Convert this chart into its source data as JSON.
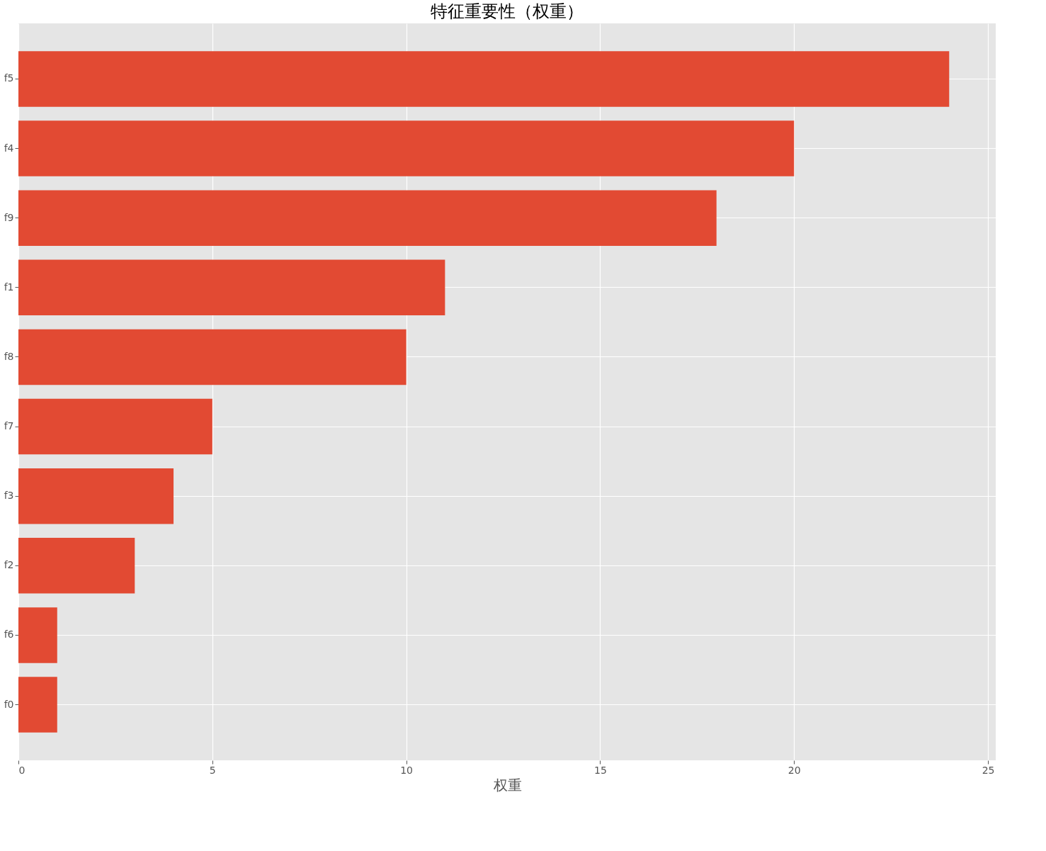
{
  "chart_data": {
    "type": "bar",
    "orientation": "horizontal",
    "title": "特征重要性（权重）",
    "xlabel": "权重",
    "categories": [
      "f5",
      "f4",
      "f9",
      "f1",
      "f8",
      "f7",
      "f3",
      "f2",
      "f6",
      "f0"
    ],
    "values": [
      24,
      20,
      18,
      11,
      10,
      5,
      4,
      3,
      1,
      1
    ],
    "color": "#e24a33",
    "xlim": [
      0,
      25.2
    ],
    "xticks": [
      0,
      5,
      10,
      15,
      20,
      25
    ],
    "grid": true
  }
}
